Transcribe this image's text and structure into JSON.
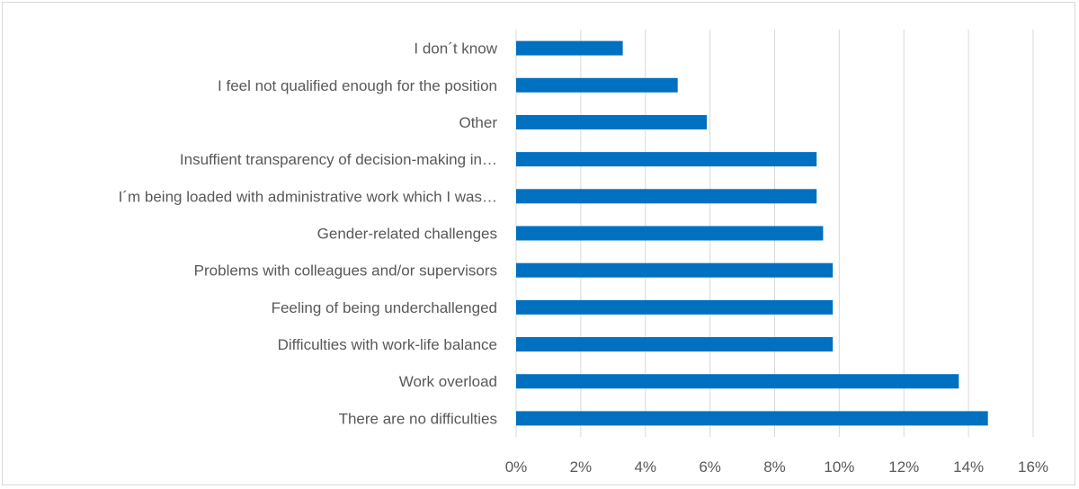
{
  "chart_data": {
    "type": "bar",
    "orientation": "horizontal",
    "categories": [
      "I don´t know",
      "I feel not qualified enough for the position",
      "Other",
      "Insuffient transparency of decision-making in…",
      "I´m being loaded with administrative work which I was…",
      "Gender-related challenges",
      "Problems with colleagues and/or supervisors",
      "Feeling of being underchallenged",
      "Difficulties with work-life balance",
      "Work overload",
      "There are no difficulties"
    ],
    "values": [
      3.3,
      5.0,
      5.9,
      9.3,
      9.3,
      9.5,
      9.8,
      9.8,
      9.8,
      13.7,
      14.6
    ],
    "xlim": [
      0,
      16
    ],
    "xticks": [
      "0%",
      "2%",
      "4%",
      "6%",
      "8%",
      "10%",
      "12%",
      "14%",
      "16%"
    ],
    "xtick_values": [
      0,
      2,
      4,
      6,
      8,
      10,
      12,
      14,
      16
    ],
    "title": "",
    "xlabel": "",
    "ylabel": "",
    "grid": true,
    "legend": "none",
    "colors": {
      "bar": "#0070c0",
      "grid": "#d9d9d9",
      "text": "#595959",
      "frame": "#d9d9d9"
    }
  }
}
